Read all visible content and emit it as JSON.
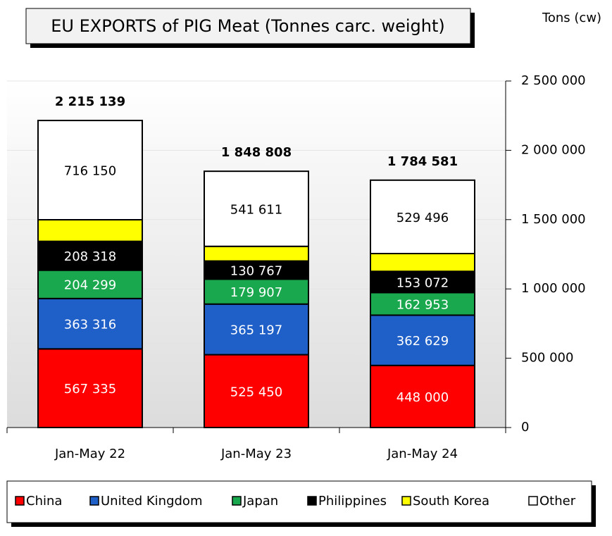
{
  "chart_data": {
    "type": "stacked_bar",
    "title": "EU EXPORTS of PIG Meat (Tonnes carc. weight)",
    "y_axis_label": "Tons (cw)",
    "categories": [
      "Jan-May 22",
      "Jan-May 23",
      "Jan-May 24"
    ],
    "series": [
      {
        "name": "China",
        "color": "#ff0000",
        "values": [
          567335,
          525450,
          448000
        ],
        "value_labels": [
          "567 335",
          "525 450",
          "448 000"
        ]
      },
      {
        "name": "United Kingdom",
        "color": "#1f5fc8",
        "values": [
          363316,
          365197,
          362629
        ],
        "value_labels": [
          "363 316",
          "365 197",
          "362 629"
        ]
      },
      {
        "name": "Japan",
        "color": "#1aa84e",
        "values": [
          204299,
          179907,
          162953
        ],
        "value_labels": [
          "204 299",
          "179 907",
          "162 953"
        ]
      },
      {
        "name": "Philippines",
        "color": "#000000",
        "values": [
          208318,
          130767,
          153072
        ],
        "value_labels": [
          "208 318",
          "130 767",
          "153 072"
        ]
      },
      {
        "name": "South Korea",
        "color": "#ffff00",
        "values": [
          155721,
          105876,
          128431
        ]
      },
      {
        "name": "Other",
        "color": "#ffffff",
        "values": [
          716150,
          541611,
          529496
        ],
        "value_labels": [
          "716 150",
          "541 611",
          "529 496"
        ]
      }
    ],
    "totals": [
      2215139,
      1848808,
      1784581
    ],
    "total_labels": [
      "2 215 139",
      "1 848 808",
      "1 784 581"
    ],
    "ylim": [
      0,
      2500000
    ],
    "yticks": [
      0,
      {
        "value": 500000,
        "label": "500 000"
      },
      {
        "value": 1000000,
        "label": "1 000 000"
      },
      {
        "value": 1500000,
        "label": "1 500 000"
      },
      {
        "value": 2000000,
        "label": "2 000 000"
      },
      {
        "value": 2500000,
        "label": "2 500 000"
      }
    ],
    "grid": true,
    "y_axis_side": "right",
    "legend": "bottom"
  }
}
